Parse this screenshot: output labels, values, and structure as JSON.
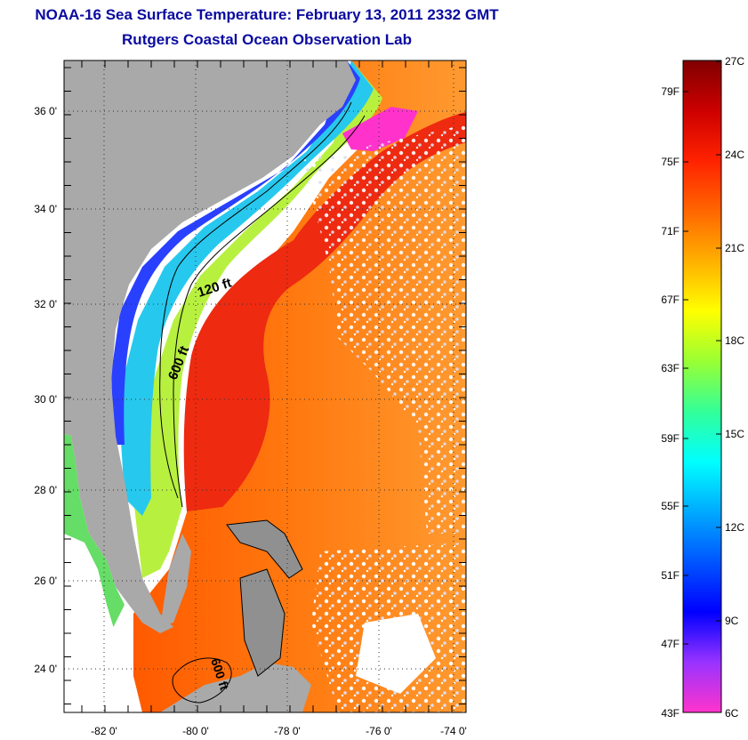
{
  "header": {
    "title": "NOAA-16 Sea Surface Temperature:  February 13, 2011 2332 GMT",
    "subtitle": "Rutgers Coastal Ocean Observation Lab"
  },
  "map": {
    "lat_labels": [
      "36 0'",
      "34 0'",
      "32 0'",
      "30 0'",
      "28 0'",
      "26 0'",
      "24 0'"
    ],
    "lon_labels": [
      "-82 0'",
      "-80 0'",
      "-78 0'",
      "-76 0'",
      "-74 0'"
    ],
    "contour_labels": [
      "120 ft",
      "600 ft",
      "600 ft"
    ],
    "colors": {
      "land": "#a9a9a9",
      "no_data": "#ffffff",
      "frame": "#000000"
    }
  },
  "colorbar": {
    "celsius_labels": [
      "27C",
      "24C",
      "21C",
      "18C",
      "15C",
      "12C",
      "9C",
      "6C"
    ],
    "fahrenheit_labels": [
      "79F",
      "75F",
      "71F",
      "67F",
      "63F",
      "59F",
      "55F",
      "51F",
      "47F",
      "43F"
    ],
    "range_celsius": [
      6,
      27
    ],
    "gradient_colors": [
      "#ff33cc",
      "#9933ff",
      "#0000ff",
      "#0055ff",
      "#00aaff",
      "#00ffff",
      "#33ff99",
      "#99ff33",
      "#ffff00",
      "#ffb000",
      "#ff6600",
      "#ff2200",
      "#cc0000",
      "#800000"
    ]
  }
}
